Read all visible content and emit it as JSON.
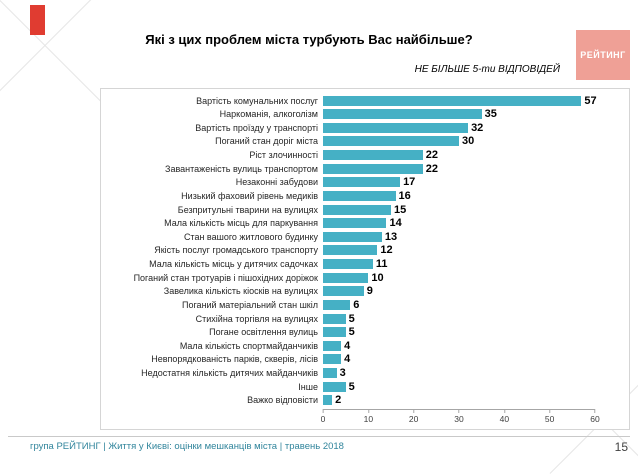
{
  "page": {
    "title": "Які з цих проблем міста турбують Вас найбільше?",
    "note": "НЕ БІЛЬШЕ 5-ти ВІДПОВІДЕЙ",
    "logo_text": "РЕЙТИНГ",
    "footer": "група РЕЙТИНГ  | Життя у Києві: оцінки мешканців міста |  травень 2018",
    "page_number": "15",
    "accent_color": "#e03c31",
    "footer_color": "#31859c"
  },
  "chart_data": {
    "type": "bar",
    "orientation": "horizontal",
    "title": "Які з цих проблем міста турбують Вас найбільше?",
    "categories": [
      "Вартість комунальних послуг",
      "Наркоманія, алкоголізм",
      "Вартість проїзду у транспорті",
      "Поганий стан доріг міста",
      "Ріст злочинності",
      "Завантаженість вулиць транспортом",
      "Незаконні забудови",
      "Низький фаховий рівень медиків",
      "Безпритульні тварини на вулицях",
      "Мала кількість  місць для паркування",
      "Стан вашого житлового будинку",
      "Якість послуг громадського транспорту",
      "Мала кількість місць у дитячих садочках",
      "Поганий стан тротуарів і пішохідних доріжок",
      "Завелика кількість кіосків на вулицях",
      "Поганий матеріальний стан шкіл",
      "Стихійна торгівля на вулицях",
      "Погане освітлення вулиць",
      "Мала кількість спортмайданчиків",
      "Невпорядкованість парків, скверів, лісів",
      "Недостатня кількість дитячих майданчиків",
      "Інше",
      "Важко відповісти"
    ],
    "values": [
      57,
      35,
      32,
      30,
      22,
      22,
      17,
      16,
      15,
      14,
      13,
      12,
      11,
      10,
      9,
      6,
      5,
      5,
      4,
      4,
      3,
      5,
      2
    ],
    "xlim": [
      0,
      60
    ],
    "x_ticks": [
      0,
      10,
      20,
      30,
      40,
      50,
      60
    ],
    "bar_color": "#45b0c5",
    "grid": false,
    "legend": false
  }
}
